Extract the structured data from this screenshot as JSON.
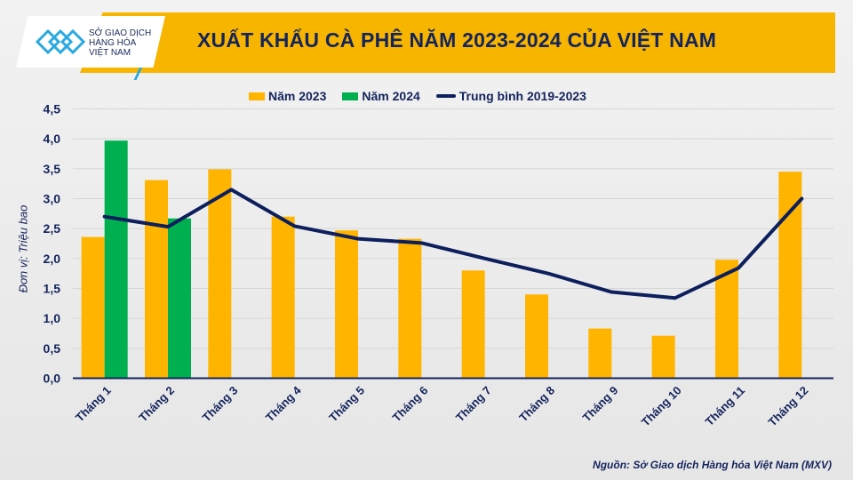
{
  "header": {
    "title": "XUẤT KHẨU CÀ PHÊ NĂM 2023-2024 CỦA VIỆT NAM",
    "logo_text": [
      "SỞ GIAO DỊCH",
      "HÀNG HÓA",
      "VIỆT NAM"
    ]
  },
  "source": "Nguồn: Sở Giao dịch Hàng hóa Việt Nam (MXV)",
  "chart_data": {
    "type": "bar",
    "title": "XUẤT KHẨU CÀ PHÊ NĂM 2023-2024 CỦA VIỆT NAM",
    "ylabel": "Đơn vị: Triệu bao",
    "xlabel": "",
    "ylim": [
      0,
      4.5
    ],
    "yticks": [
      "0,0",
      "0,5",
      "1,0",
      "1,5",
      "2,0",
      "2,5",
      "3,0",
      "3,5",
      "4,0",
      "4,5"
    ],
    "grid": true,
    "legend": "top",
    "categories": [
      "Tháng 1",
      "Tháng 2",
      "Tháng 3",
      "Tháng 4",
      "Tháng 5",
      "Tháng 6",
      "Tháng 7",
      "Tháng 8",
      "Tháng 9",
      "Tháng 10",
      "Tháng 11",
      "Tháng 12"
    ],
    "series": [
      {
        "name": "Năm 2023",
        "type": "bar",
        "color": "#ffb400",
        "values": [
          2.36,
          3.31,
          3.49,
          2.7,
          2.47,
          2.33,
          1.8,
          1.4,
          0.83,
          0.71,
          1.98,
          3.45
        ]
      },
      {
        "name": "Năm 2024",
        "type": "bar",
        "color": "#00b050",
        "values": [
          3.97,
          2.67,
          null,
          null,
          null,
          null,
          null,
          null,
          null,
          null,
          null,
          null
        ]
      },
      {
        "name": "Trung bình 2019-2023",
        "type": "line",
        "color": "#0d1f5c",
        "values": [
          2.7,
          2.53,
          3.15,
          2.54,
          2.33,
          2.26,
          2.0,
          1.75,
          1.44,
          1.34,
          1.84,
          3.0
        ]
      }
    ]
  }
}
